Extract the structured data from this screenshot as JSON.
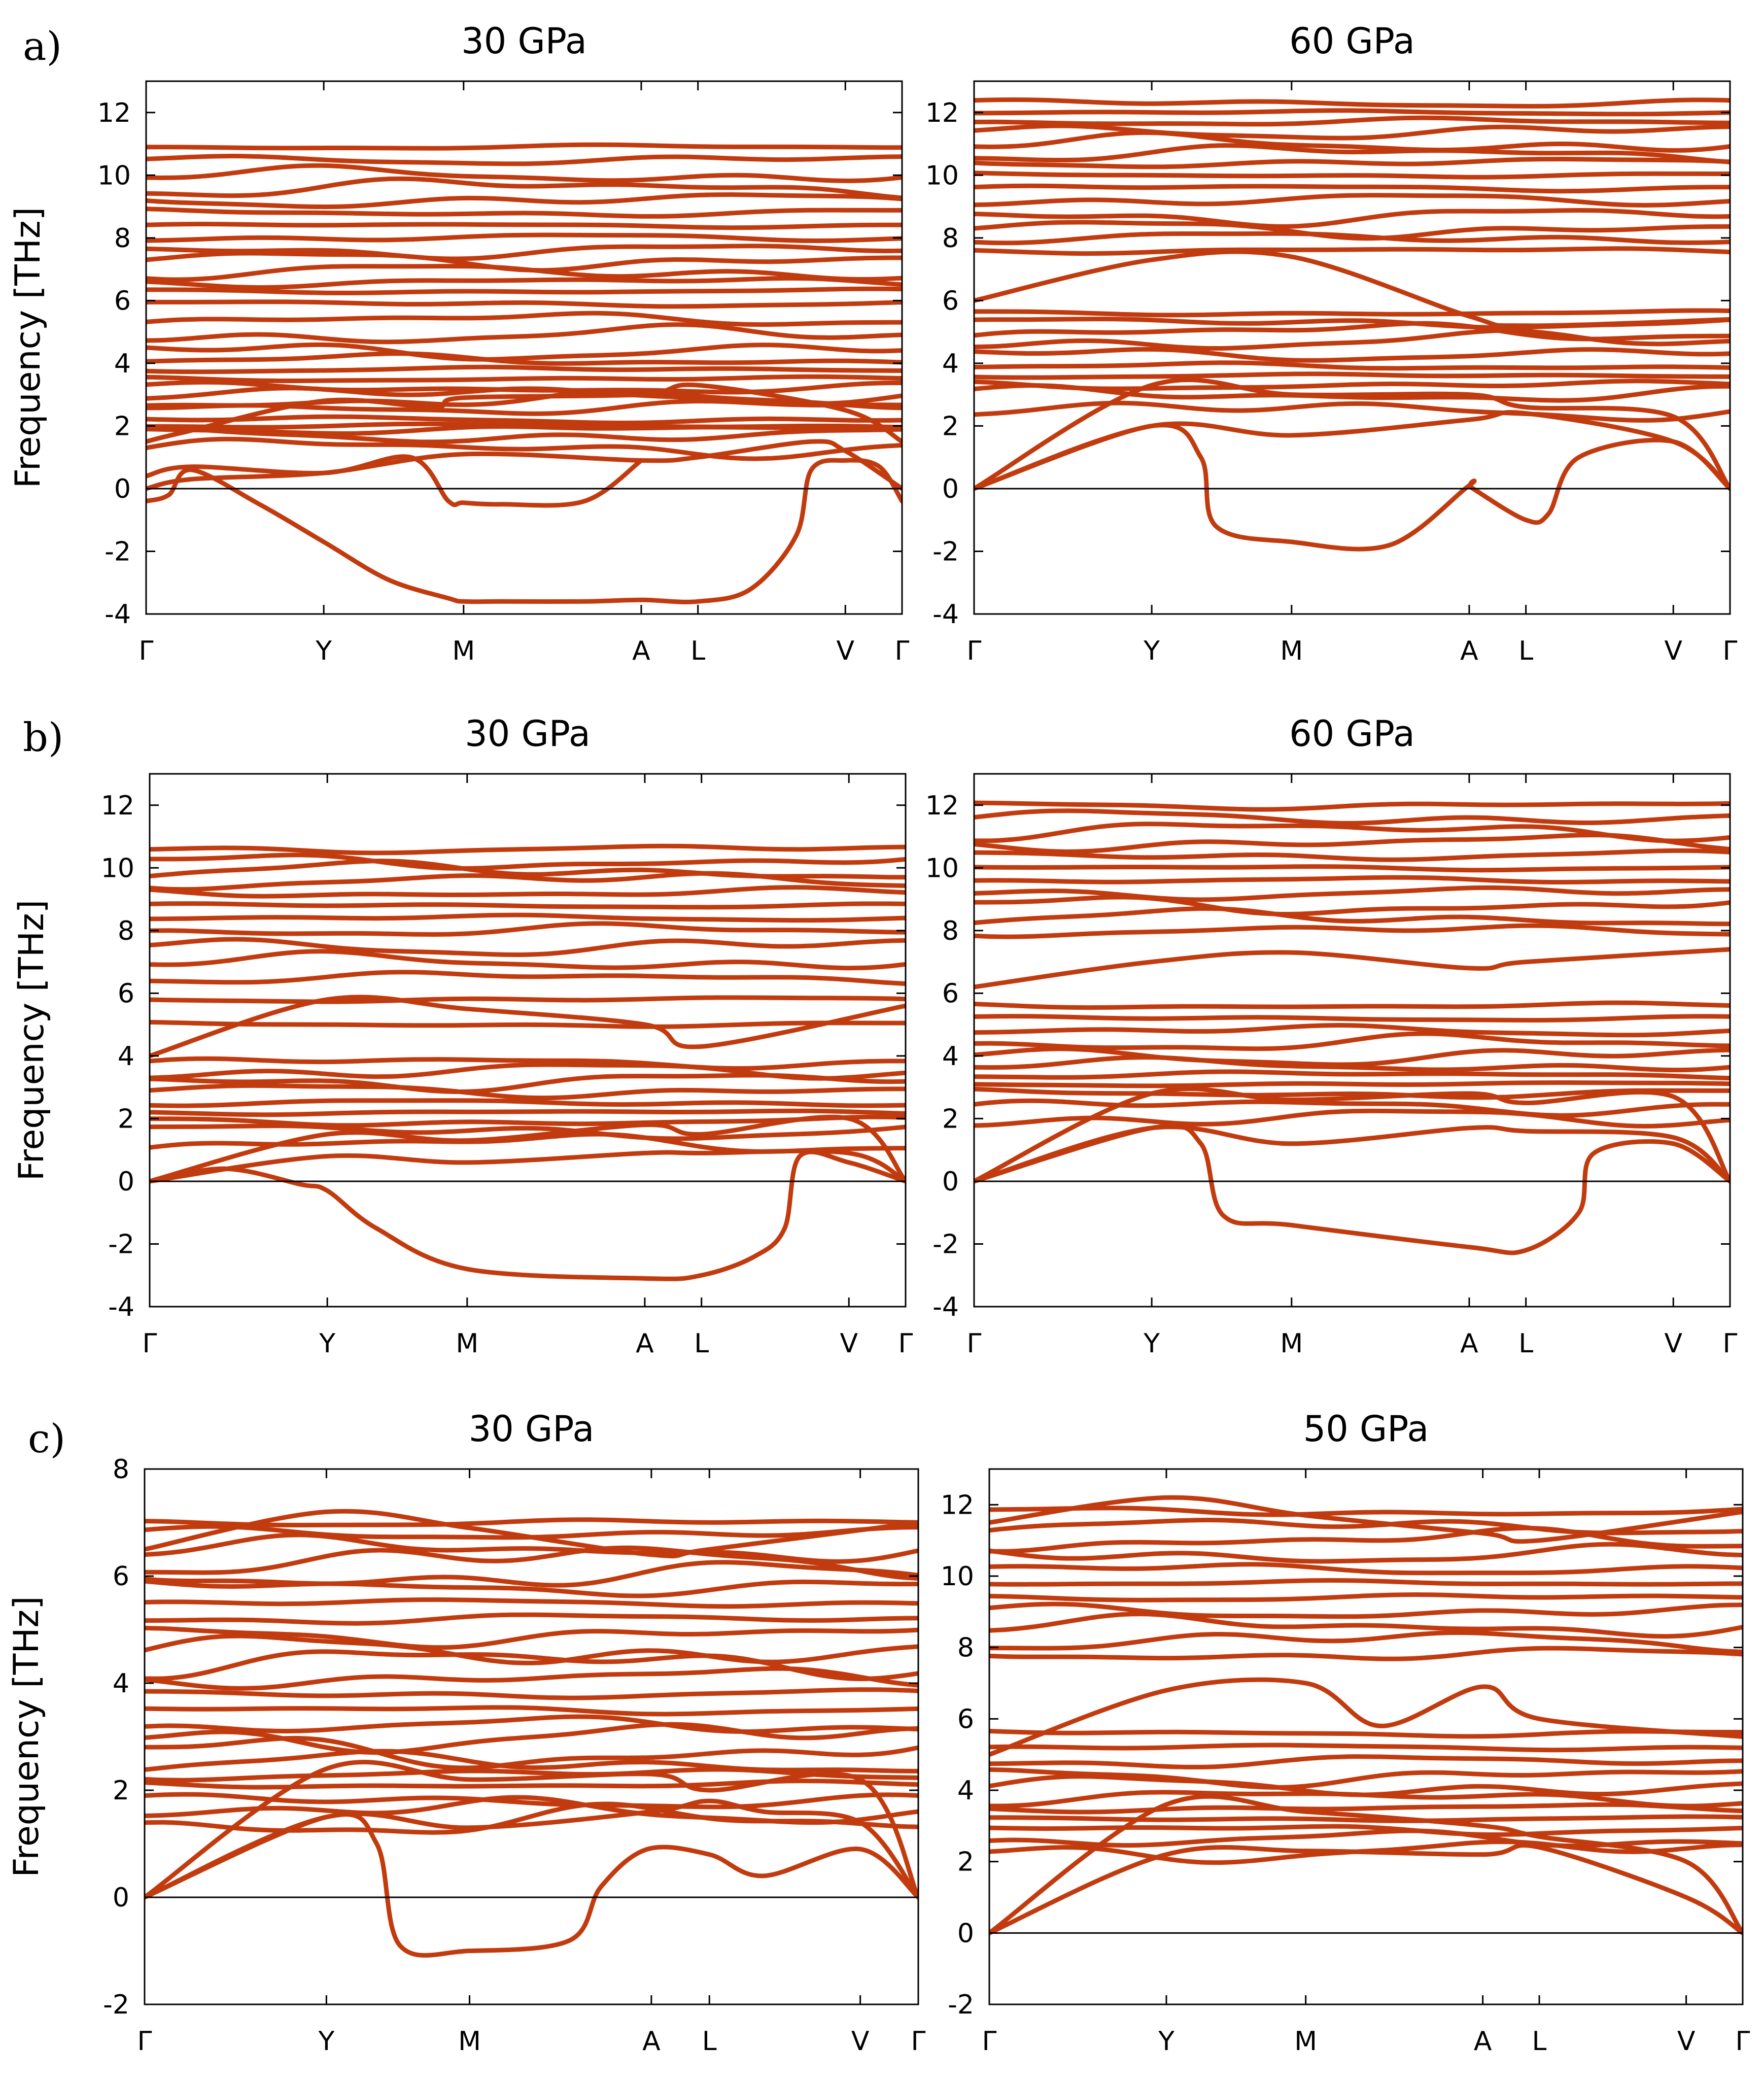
{
  "figure": {
    "band_color": "#c23b0e",
    "panel_labels": [
      "a)",
      "b)",
      "c)"
    ]
  },
  "chart_data": [
    {
      "type": "line",
      "title": "30 GPa",
      "ylabel": "Frequency [THz]",
      "ylim": [
        -4,
        13
      ],
      "yticks": [
        -4,
        -2,
        0,
        2,
        4,
        6,
        8,
        10,
        12
      ],
      "path_labels": [
        "Γ",
        "Y",
        "M",
        "A",
        "L",
        "V",
        "Γ"
      ],
      "path_positions": [
        0,
        0.235,
        0.42,
        0.655,
        0.73,
        0.925,
        1.0
      ],
      "flat_bands": [
        1.3,
        1.7,
        1.9,
        2.0,
        2.2,
        2.6,
        2.8,
        3.0,
        3.2,
        3.5,
        3.8,
        4.1,
        4.4,
        4.9,
        5.4,
        5.9,
        6.3,
        6.6,
        6.9,
        7.3,
        7.6,
        8.0,
        8.4,
        8.8,
        9.2,
        9.6,
        10.0,
        10.5,
        10.9
      ],
      "dispersive_bands": [
        {
          "name": "acoustic-1",
          "x": [
            0,
            0.06,
            0.235,
            0.42,
            0.655,
            0.73,
            0.88,
            0.925,
            1.0
          ],
          "y": [
            0,
            0.3,
            0.5,
            1.1,
            0.9,
            1.0,
            1.5,
            1.2,
            0
          ]
        },
        {
          "name": "acoustic-2",
          "x": [
            0,
            0.05,
            0.235,
            0.38,
            0.42,
            0.655,
            0.73,
            0.925,
            1.0
          ],
          "y": [
            1.5,
            1.8,
            2.8,
            2.6,
            2.9,
            3.0,
            3.3,
            2.5,
            1.5
          ]
        },
        {
          "name": "unstable-low",
          "x": [
            0,
            0.03,
            0.06,
            0.15,
            0.235,
            0.32,
            0.4,
            0.42,
            0.47,
            0.58,
            0.655,
            0.73,
            0.8,
            0.86,
            0.88,
            0.925,
            0.97,
            1.0
          ],
          "y": [
            -0.4,
            -0.2,
            0.6,
            -0.5,
            -1.7,
            -2.9,
            -3.5,
            -3.6,
            -3.6,
            -3.6,
            -3.55,
            -3.6,
            -3.2,
            -1.5,
            0.6,
            0.9,
            0.7,
            -0.4
          ]
        },
        {
          "name": "unstable-mid",
          "x": [
            0,
            0.06,
            0.235,
            0.35,
            0.4,
            0.42,
            0.47,
            0.58,
            0.655
          ],
          "y": [
            0.4,
            0.7,
            0.5,
            1.0,
            -0.4,
            -0.45,
            -0.5,
            -0.4,
            0.9
          ]
        }
      ]
    },
    {
      "type": "line",
      "title": "60 GPa",
      "ylabel": "",
      "ylim": [
        -4,
        13
      ],
      "yticks": [
        -4,
        -2,
        0,
        2,
        4,
        6,
        8,
        10,
        12
      ],
      "path_labels": [
        "Γ",
        "Y",
        "M",
        "A",
        "L",
        "V",
        "Γ"
      ],
      "path_positions": [
        0,
        0.235,
        0.42,
        0.655,
        0.73,
        0.925,
        1.0
      ],
      "flat_bands": [
        2.5,
        3.0,
        3.3,
        3.6,
        3.9,
        4.3,
        4.7,
        5.0,
        5.3,
        5.6,
        7.6,
        8.0,
        8.3,
        8.7,
        9.2,
        9.6,
        10.0,
        10.4,
        10.7,
        11.0,
        11.4,
        11.7,
        12.0,
        12.3
      ],
      "dispersive_bands": [
        {
          "name": "acoustic-1",
          "x": [
            0,
            0.235,
            0.42,
            0.655,
            0.73,
            0.925,
            1.0
          ],
          "y": [
            0,
            2.0,
            1.7,
            2.2,
            2.4,
            1.5,
            0
          ]
        },
        {
          "name": "acoustic-2",
          "x": [
            0,
            0.235,
            0.42,
            0.655,
            0.73,
            0.925,
            1.0
          ],
          "y": [
            0,
            3.3,
            3.0,
            3.0,
            2.6,
            2.3,
            0
          ]
        },
        {
          "name": "unstable-low",
          "x": [
            0,
            0.235,
            0.3,
            0.32,
            0.42,
            0.55,
            0.655,
            0.66,
            0.73,
            0.76,
            0.8,
            0.925,
            1.0
          ],
          "y": [
            0,
            2.0,
            1.0,
            -1.2,
            -1.7,
            -1.8,
            0.1,
            0.0,
            -1.0,
            -0.8,
            1.0,
            1.5,
            0
          ]
        },
        {
          "name": "optical-dip",
          "x": [
            0,
            0.235,
            0.42,
            0.655,
            0.73,
            1.0
          ],
          "y": [
            6.0,
            7.3,
            7.4,
            5.5,
            5.2,
            5.4
          ]
        }
      ]
    },
    {
      "type": "line",
      "title": "30 GPa",
      "ylabel": "Frequency [THz]",
      "ylim": [
        -4,
        13
      ],
      "yticks": [
        -4,
        -2,
        0,
        2,
        4,
        6,
        8,
        10,
        12
      ],
      "path_labels": [
        "Γ",
        "Y",
        "M",
        "A",
        "L",
        "V",
        "Γ"
      ],
      "path_positions": [
        0,
        0.235,
        0.42,
        0.655,
        0.73,
        0.925,
        1.0
      ],
      "flat_bands": [
        1.2,
        1.6,
        1.9,
        2.2,
        2.5,
        2.9,
        3.2,
        3.5,
        3.8,
        5.0,
        5.8,
        6.5,
        7.0,
        7.5,
        8.0,
        8.4,
        8.8,
        9.2,
        9.6,
        9.9,
        10.2,
        10.6
      ],
      "dispersive_bands": [
        {
          "name": "acoustic-1",
          "x": [
            0,
            0.235,
            0.42,
            0.655,
            0.73,
            0.925,
            1.0
          ],
          "y": [
            0,
            0.8,
            0.6,
            0.9,
            0.9,
            0.9,
            0
          ]
        },
        {
          "name": "acoustic-2",
          "x": [
            0,
            0.235,
            0.42,
            0.655,
            0.73,
            0.925,
            1.0
          ],
          "y": [
            0,
            1.5,
            1.3,
            1.8,
            1.5,
            2.0,
            0
          ]
        },
        {
          "name": "unstable-low",
          "x": [
            0,
            0.1,
            0.2,
            0.235,
            0.3,
            0.42,
            0.655,
            0.73,
            0.8,
            0.84,
            0.86,
            0.925,
            1.0
          ],
          "y": [
            0,
            0.4,
            -0.1,
            -0.3,
            -1.5,
            -2.8,
            -3.1,
            -3.0,
            -2.4,
            -1.5,
            0.8,
            0.6,
            0
          ]
        },
        {
          "name": "optical-dip",
          "x": [
            0,
            0.235,
            0.42,
            0.655,
            0.73,
            1.0
          ],
          "y": [
            4.0,
            5.8,
            5.5,
            5.0,
            4.3,
            5.6
          ]
        }
      ]
    },
    {
      "type": "line",
      "title": "60 GPa",
      "ylabel": "",
      "ylim": [
        -4,
        13
      ],
      "yticks": [
        -4,
        -2,
        0,
        2,
        4,
        6,
        8,
        10,
        12
      ],
      "path_labels": [
        "Γ",
        "Y",
        "M",
        "A",
        "L",
        "V",
        "Γ"
      ],
      "path_positions": [
        0,
        0.235,
        0.42,
        0.655,
        0.73,
        0.925,
        1.0
      ],
      "flat_bands": [
        2.0,
        2.4,
        2.8,
        3.1,
        3.4,
        3.7,
        4.0,
        4.4,
        4.8,
        5.2,
        5.6,
        8.0,
        8.4,
        8.8,
        9.2,
        9.6,
        10.0,
        10.4,
        10.8,
        11.2,
        11.6,
        12.0
      ],
      "dispersive_bands": [
        {
          "name": "acoustic-1",
          "x": [
            0,
            0.235,
            0.42,
            0.655,
            0.73,
            0.925,
            1.0
          ],
          "y": [
            0,
            1.7,
            1.2,
            1.7,
            1.6,
            1.4,
            0
          ]
        },
        {
          "name": "acoustic-2",
          "x": [
            0,
            0.235,
            0.42,
            0.655,
            0.73,
            0.925,
            1.0
          ],
          "y": [
            0,
            2.8,
            2.6,
            2.8,
            2.5,
            2.7,
            0
          ]
        },
        {
          "name": "unstable-low",
          "x": [
            0,
            0.235,
            0.3,
            0.33,
            0.42,
            0.655,
            0.73,
            0.8,
            0.82,
            0.925,
            1.0
          ],
          "y": [
            0,
            1.7,
            1.2,
            -1.1,
            -1.4,
            -2.1,
            -2.2,
            -1.0,
            0.9,
            1.2,
            0
          ]
        },
        {
          "name": "optical-dip",
          "x": [
            0,
            0.235,
            0.42,
            0.655,
            0.73,
            1.0
          ],
          "y": [
            6.2,
            7.0,
            7.3,
            6.8,
            7.0,
            7.4
          ]
        }
      ]
    },
    {
      "type": "line",
      "title": "30 GPa",
      "ylabel": "Frequency [THz]",
      "ylim": [
        -2,
        8
      ],
      "yticks": [
        -2,
        0,
        2,
        4,
        6,
        8
      ],
      "path_labels": [
        "Γ",
        "Y",
        "M",
        "A",
        "L",
        "V",
        "Γ"
      ],
      "path_positions": [
        0,
        0.235,
        0.42,
        0.655,
        0.73,
        0.925,
        1.0
      ],
      "flat_bands": [
        1.4,
        1.6,
        1.8,
        2.1,
        2.3,
        2.5,
        2.7,
        3.0,
        3.2,
        3.5,
        3.8,
        4.1,
        4.4,
        4.6,
        4.9,
        5.2,
        5.5,
        5.8,
        6.0,
        6.3,
        6.5,
        6.8,
        7.0
      ],
      "dispersive_bands": [
        {
          "name": "acoustic-1",
          "x": [
            0,
            0.235,
            0.42,
            0.655,
            0.73,
            0.8,
            0.925,
            1.0
          ],
          "y": [
            0,
            1.5,
            1.3,
            1.6,
            1.8,
            1.6,
            1.4,
            0
          ]
        },
        {
          "name": "acoustic-2",
          "x": [
            0,
            0.235,
            0.42,
            0.655,
            0.73,
            0.925,
            1.0
          ],
          "y": [
            0,
            2.4,
            2.2,
            2.3,
            2.0,
            2.2,
            0
          ]
        },
        {
          "name": "unstable-low",
          "x": [
            0,
            0.235,
            0.3,
            0.33,
            0.42,
            0.55,
            0.59,
            0.65,
            0.73,
            0.8,
            0.925,
            1.0
          ],
          "y": [
            0,
            1.5,
            1.0,
            -0.9,
            -1.0,
            -0.8,
            0.2,
            0.9,
            0.8,
            0.4,
            0.9,
            0
          ]
        },
        {
          "name": "high-arc",
          "x": [
            0,
            0.235,
            0.42,
            0.655,
            0.73,
            1.0
          ],
          "y": [
            6.5,
            7.2,
            6.9,
            6.4,
            6.5,
            7.0
          ]
        }
      ]
    },
    {
      "type": "line",
      "title": "50 GPa",
      "ylabel": "",
      "ylim": [
        -2,
        13
      ],
      "yticks": [
        -2,
        0,
        2,
        4,
        6,
        8,
        10,
        12
      ],
      "path_labels": [
        "Γ",
        "Y",
        "M",
        "A",
        "L",
        "V",
        "Γ"
      ],
      "path_positions": [
        0,
        0.235,
        0.42,
        0.655,
        0.73,
        0.925,
        1.0
      ],
      "flat_bands": [
        2.3,
        2.6,
        2.9,
        3.2,
        3.5,
        3.8,
        4.1,
        4.4,
        4.8,
        5.2,
        5.6,
        7.8,
        8.2,
        8.6,
        9.0,
        9.4,
        9.8,
        10.2,
        10.6,
        11.0,
        11.4,
        11.8
      ],
      "dispersive_bands": [
        {
          "name": "acoustic-1",
          "x": [
            0,
            0.235,
            0.42,
            0.655,
            0.73,
            0.925,
            1.0
          ],
          "y": [
            0,
            2.2,
            2.3,
            2.2,
            2.4,
            1.0,
            0
          ]
        },
        {
          "name": "acoustic-2",
          "x": [
            0,
            0.235,
            0.42,
            0.655,
            0.73,
            0.925,
            1.0
          ],
          "y": [
            0,
            3.6,
            3.4,
            3.0,
            2.7,
            2.0,
            0
          ]
        },
        {
          "name": "optical-dip",
          "x": [
            0,
            0.235,
            0.42,
            0.52,
            0.655,
            0.73,
            1.0
          ],
          "y": [
            5.0,
            6.8,
            7.0,
            5.8,
            6.9,
            6.0,
            5.5
          ]
        },
        {
          "name": "high-arc",
          "x": [
            0,
            0.235,
            0.42,
            0.655,
            0.73,
            1.0
          ],
          "y": [
            11.5,
            12.2,
            11.7,
            11.2,
            11.0,
            11.8
          ]
        }
      ]
    }
  ]
}
